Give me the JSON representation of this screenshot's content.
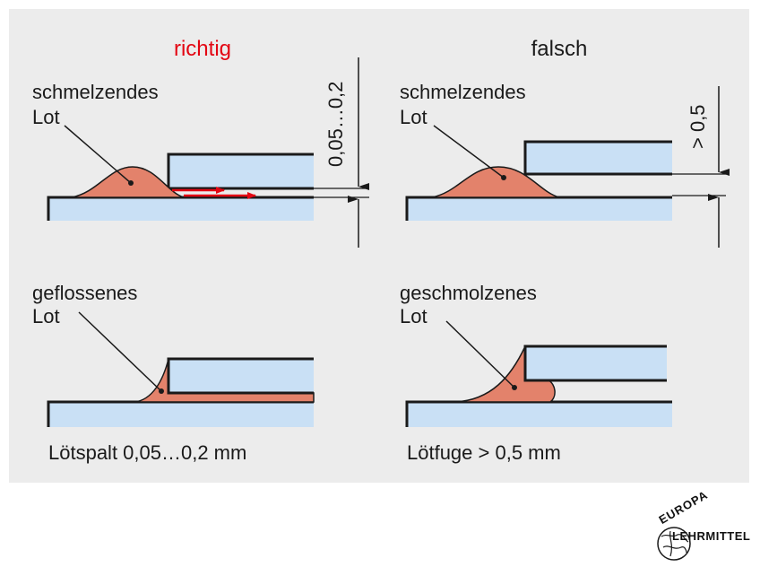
{
  "colors": {
    "panel_bg": "#ececec",
    "metal_fill": "#c9e0f5",
    "solder_fill": "#e3826b",
    "arrow_red": "#e30613",
    "heading_correct": "#e30613",
    "text": "#1a1a1a"
  },
  "headings": {
    "correct": "richtig",
    "wrong": "falsch"
  },
  "panels": {
    "top_left": {
      "label_line1": "schmelzendes",
      "label_line2": "Lot",
      "dimension": "0,05…0,2"
    },
    "top_right": {
      "label_line1": "schmelzendes",
      "label_line2": "Lot",
      "dimension": "> 0,5"
    },
    "bottom_left": {
      "label_line1": "geflossenes",
      "label_line2": "Lot",
      "caption": "Lötspalt 0,05…0,2 mm"
    },
    "bottom_right": {
      "label_line1": "geschmolzenes",
      "label_line2": "Lot",
      "caption": "Lötfuge > 0,5 mm"
    }
  },
  "logo": {
    "line1": "EUROPA",
    "line2": "LEHRMITTEL",
    "icon": "globe-icon"
  }
}
